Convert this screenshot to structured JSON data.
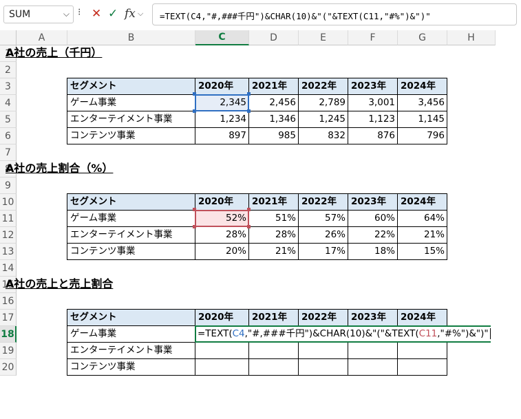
{
  "formula_bar": {
    "name_box": "SUM",
    "formula": "=TEXT(C4,\"#,###千円\")&CHAR(10)&\"(\"&TEXT(C11,\"#%\")&\")\""
  },
  "columns": [
    "A",
    "B",
    "C",
    "D",
    "E",
    "F",
    "G",
    "H"
  ],
  "rows": [
    "1",
    "2",
    "3",
    "4",
    "5",
    "6",
    "7",
    "8",
    "9",
    "10",
    "11",
    "12",
    "13",
    "14",
    "15",
    "16",
    "17",
    "18",
    "19",
    "20"
  ],
  "section1": {
    "title": "A社の売上（千円）",
    "headers": [
      "セグメント",
      "2020年",
      "2021年",
      "2022年",
      "2023年",
      "2024年"
    ],
    "rows": [
      {
        "label": "ゲーム事業",
        "values": [
          "2,345",
          "2,456",
          "2,789",
          "3,001",
          "3,456"
        ]
      },
      {
        "label": "エンターテイメント事業",
        "values": [
          "1,234",
          "1,346",
          "1,245",
          "1,123",
          "1,145"
        ]
      },
      {
        "label": "コンテンツ事業",
        "values": [
          "897",
          "985",
          "832",
          "876",
          "796"
        ]
      }
    ]
  },
  "section2": {
    "title": "A社の売上割合（%）",
    "headers": [
      "セグメント",
      "2020年",
      "2021年",
      "2022年",
      "2023年",
      "2024年"
    ],
    "rows": [
      {
        "label": "ゲーム事業",
        "values": [
          "52%",
          "51%",
          "57%",
          "60%",
          "64%"
        ]
      },
      {
        "label": "エンターテイメント事業",
        "values": [
          "28%",
          "28%",
          "26%",
          "22%",
          "21%"
        ]
      },
      {
        "label": "コンテンツ事業",
        "values": [
          "20%",
          "21%",
          "17%",
          "18%",
          "15%"
        ]
      }
    ]
  },
  "section3": {
    "title": "A社の売上と売上割合",
    "headers": [
      "セグメント",
      "2020年",
      "2021年",
      "2022年",
      "2023年",
      "2024年"
    ],
    "rows": [
      {
        "label": "ゲーム事業"
      },
      {
        "label": "エンターテイメント事業"
      },
      {
        "label": "コンテンツ事業"
      }
    ],
    "editing_formula": {
      "p1": "=TEXT(",
      "ref1": "C4",
      "p2": ",\"#,###千円\")&CHAR(10)&\"(\"&TEXT(",
      "ref2": "C11",
      "p3": ",\"#%\")&\")\""
    }
  },
  "colors": {
    "header_fill": "#dbe8f4",
    "ref1_color": "#2f6fc2",
    "ref2_color": "#c0505a",
    "accent": "#107c41"
  }
}
